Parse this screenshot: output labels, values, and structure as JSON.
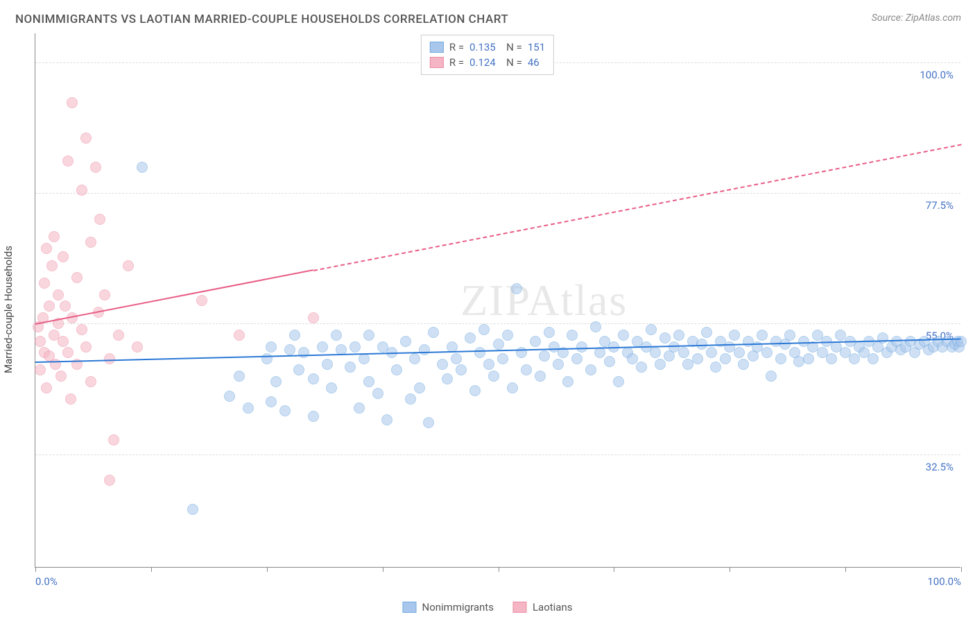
{
  "title": "NONIMMIGRANTS VS LAOTIAN MARRIED-COUPLE HOUSEHOLDS CORRELATION CHART",
  "source": "Source: ZipAtlas.com",
  "yaxis_label": "Married-couple Households",
  "watermark": "ZIPAtlas",
  "chart": {
    "type": "scatter",
    "xlim": [
      0,
      100
    ],
    "ylim": [
      13,
      105
    ],
    "y_gridlines": [
      32.5,
      55.0,
      77.5,
      100.0
    ],
    "y_tick_labels": [
      "32.5%",
      "55.0%",
      "77.5%",
      "100.0%"
    ],
    "x_ticks": [
      0,
      12.5,
      25,
      37.5,
      50,
      62.5,
      75,
      87.5,
      100
    ],
    "x_tick_labels_left": "0.0%",
    "x_tick_labels_right": "100.0%",
    "grid_color": "#dddddd",
    "axis_color": "#888888",
    "background_color": "#ffffff",
    "marker_radius": 8,
    "marker_opacity": 0.55,
    "marker_stroke_width": 1.5
  },
  "series": [
    {
      "name": "Nonimmigrants",
      "color_fill": "#a9c7ec",
      "color_stroke": "#6fa8e0",
      "r": "0.135",
      "n": "151",
      "trend": {
        "x1": 0,
        "y1": 48.5,
        "x2": 100,
        "y2": 52.5,
        "color": "#2b78d6",
        "width": 2.5,
        "dashed_after_x": null
      },
      "points": [
        [
          11.5,
          82
        ],
        [
          17,
          23
        ],
        [
          21,
          42.5
        ],
        [
          22,
          46
        ],
        [
          23,
          40.5
        ],
        [
          25,
          49
        ],
        [
          25.5,
          41.5
        ],
        [
          25.5,
          51
        ],
        [
          26,
          45
        ],
        [
          27,
          40
        ],
        [
          27.5,
          50.5
        ],
        [
          28,
          53
        ],
        [
          28.5,
          47
        ],
        [
          29,
          50
        ],
        [
          30,
          45.5
        ],
        [
          30,
          39
        ],
        [
          31,
          51
        ],
        [
          31.5,
          48
        ],
        [
          32,
          44
        ],
        [
          32.5,
          53
        ],
        [
          33,
          50.5
        ],
        [
          34,
          47.5
        ],
        [
          34.5,
          51
        ],
        [
          35,
          40.5
        ],
        [
          35.5,
          49
        ],
        [
          36,
          53
        ],
        [
          36,
          45
        ],
        [
          37,
          43
        ],
        [
          37.5,
          51
        ],
        [
          38,
          38.5
        ],
        [
          38.5,
          50
        ],
        [
          39,
          47
        ],
        [
          40,
          52
        ],
        [
          40.5,
          42
        ],
        [
          41,
          49
        ],
        [
          41.5,
          44
        ],
        [
          42,
          50.5
        ],
        [
          42.5,
          38
        ],
        [
          43,
          53.5
        ],
        [
          44,
          48
        ],
        [
          44.5,
          45.5
        ],
        [
          45,
          51
        ],
        [
          45.5,
          49
        ],
        [
          46,
          47
        ],
        [
          47,
          52.5
        ],
        [
          47.5,
          43.5
        ],
        [
          48,
          50
        ],
        [
          48.5,
          54
        ],
        [
          49,
          48
        ],
        [
          49.5,
          46
        ],
        [
          50,
          51.5
        ],
        [
          50.5,
          49
        ],
        [
          51,
          53
        ],
        [
          51.5,
          44
        ],
        [
          52,
          61
        ],
        [
          52.5,
          50
        ],
        [
          53,
          47
        ],
        [
          54,
          52
        ],
        [
          54.5,
          46
        ],
        [
          55,
          49.5
        ],
        [
          55.5,
          53.5
        ],
        [
          56,
          51
        ],
        [
          56.5,
          48
        ],
        [
          57,
          50
        ],
        [
          57.5,
          45
        ],
        [
          58,
          53
        ],
        [
          58.5,
          49
        ],
        [
          59,
          51
        ],
        [
          60,
          47
        ],
        [
          60.5,
          54.5
        ],
        [
          61,
          50
        ],
        [
          61.5,
          52
        ],
        [
          62,
          48.5
        ],
        [
          62.5,
          51
        ],
        [
          63,
          45
        ],
        [
          63.5,
          53
        ],
        [
          64,
          50
        ],
        [
          64.5,
          49
        ],
        [
          65,
          52
        ],
        [
          65.5,
          47.5
        ],
        [
          66,
          51
        ],
        [
          66.5,
          54
        ],
        [
          67,
          50
        ],
        [
          67.5,
          48
        ],
        [
          68,
          52.5
        ],
        [
          68.5,
          49.5
        ],
        [
          69,
          51
        ],
        [
          69.5,
          53
        ],
        [
          70,
          50
        ],
        [
          70.5,
          48
        ],
        [
          71,
          52
        ],
        [
          71.5,
          49
        ],
        [
          72,
          51.5
        ],
        [
          72.5,
          53.5
        ],
        [
          73,
          50
        ],
        [
          73.5,
          47.5
        ],
        [
          74,
          52
        ],
        [
          74.5,
          49
        ],
        [
          75,
          51
        ],
        [
          75.5,
          53
        ],
        [
          76,
          50
        ],
        [
          76.5,
          48
        ],
        [
          77,
          52
        ],
        [
          77.5,
          49.5
        ],
        [
          78,
          51
        ],
        [
          78.5,
          53
        ],
        [
          79,
          50
        ],
        [
          79.5,
          46
        ],
        [
          80,
          52
        ],
        [
          80.5,
          49
        ],
        [
          81,
          51.5
        ],
        [
          81.5,
          53
        ],
        [
          82,
          50
        ],
        [
          82.5,
          48.5
        ],
        [
          83,
          52
        ],
        [
          83.5,
          49
        ],
        [
          84,
          51
        ],
        [
          84.5,
          53
        ],
        [
          85,
          50
        ],
        [
          85.5,
          52
        ],
        [
          86,
          49
        ],
        [
          86.5,
          51
        ],
        [
          87,
          53
        ],
        [
          87.5,
          50
        ],
        [
          88,
          52
        ],
        [
          88.5,
          49
        ],
        [
          89,
          51
        ],
        [
          89.5,
          50
        ],
        [
          90,
          52
        ],
        [
          90.5,
          49
        ],
        [
          91,
          51
        ],
        [
          91.5,
          52.5
        ],
        [
          92,
          50
        ],
        [
          92.5,
          51
        ],
        [
          93,
          52
        ],
        [
          93.5,
          50.5
        ],
        [
          94,
          51
        ],
        [
          94.5,
          52
        ],
        [
          95,
          50
        ],
        [
          95.5,
          51.5
        ],
        [
          96,
          52
        ],
        [
          96.5,
          50.5
        ],
        [
          97,
          51
        ],
        [
          97.5,
          52
        ],
        [
          98,
          51
        ],
        [
          98.5,
          52
        ],
        [
          99,
          51
        ],
        [
          99.3,
          51.5
        ],
        [
          99.6,
          52
        ],
        [
          99.8,
          51
        ],
        [
          100,
          52
        ]
      ]
    },
    {
      "name": "Laotians",
      "color_fill": "#f5b5c4",
      "color_stroke": "#ec8ba3",
      "r": "0.124",
      "n": "46",
      "trend": {
        "x1": 0,
        "y1": 55,
        "x2": 100,
        "y2": 86,
        "color": "#e85c85",
        "width": 2,
        "dashed_after_x": 30
      },
      "points": [
        [
          0.3,
          54.5
        ],
        [
          0.5,
          52
        ],
        [
          0.5,
          47
        ],
        [
          0.8,
          56
        ],
        [
          1,
          50
        ],
        [
          1,
          62
        ],
        [
          1.2,
          68
        ],
        [
          1.2,
          44
        ],
        [
          1.5,
          58
        ],
        [
          1.5,
          49.5
        ],
        [
          1.8,
          65
        ],
        [
          2,
          53
        ],
        [
          2,
          70
        ],
        [
          2.2,
          48
        ],
        [
          2.5,
          60
        ],
        [
          2.5,
          55
        ],
        [
          2.8,
          46
        ],
        [
          3,
          52
        ],
        [
          3,
          66.5
        ],
        [
          3.2,
          58
        ],
        [
          3.5,
          50
        ],
        [
          3.5,
          83
        ],
        [
          3.8,
          42
        ],
        [
          4,
          56
        ],
        [
          4,
          93
        ],
        [
          4.5,
          63
        ],
        [
          4.5,
          48
        ],
        [
          5,
          78
        ],
        [
          5,
          54
        ],
        [
          5.5,
          87
        ],
        [
          5.5,
          51
        ],
        [
          6,
          69
        ],
        [
          6,
          45
        ],
        [
          6.5,
          82
        ],
        [
          6.8,
          57
        ],
        [
          7,
          73
        ],
        [
          7.5,
          60
        ],
        [
          8,
          28
        ],
        [
          8,
          49
        ],
        [
          8.5,
          35
        ],
        [
          9,
          53
        ],
        [
          10,
          65
        ],
        [
          11,
          51
        ],
        [
          18,
          59
        ],
        [
          22,
          53
        ],
        [
          30,
          56
        ]
      ]
    }
  ],
  "legend_bottom": [
    {
      "label": "Nonimmigrants",
      "fill": "#a9c7ec",
      "stroke": "#6fa8e0"
    },
    {
      "label": "Laotians",
      "fill": "#f5b5c4",
      "stroke": "#ec8ba3"
    }
  ]
}
